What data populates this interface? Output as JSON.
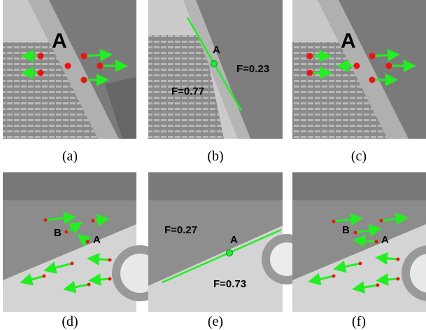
{
  "panels": [
    {
      "caption": "(a)",
      "labels": [
        "A"
      ]
    },
    {
      "caption": "(b)",
      "labels": [
        "A",
        "F=0.23",
        "F=0.77"
      ]
    },
    {
      "caption": "(c)",
      "labels": [
        "A"
      ]
    },
    {
      "caption": "(d)",
      "labels": [
        "B",
        "A"
      ]
    },
    {
      "caption": "(e)",
      "labels": [
        "F=0.27",
        "A",
        "F=0.73"
      ]
    },
    {
      "caption": "(f)",
      "labels": [
        "B",
        "A"
      ]
    }
  ]
}
